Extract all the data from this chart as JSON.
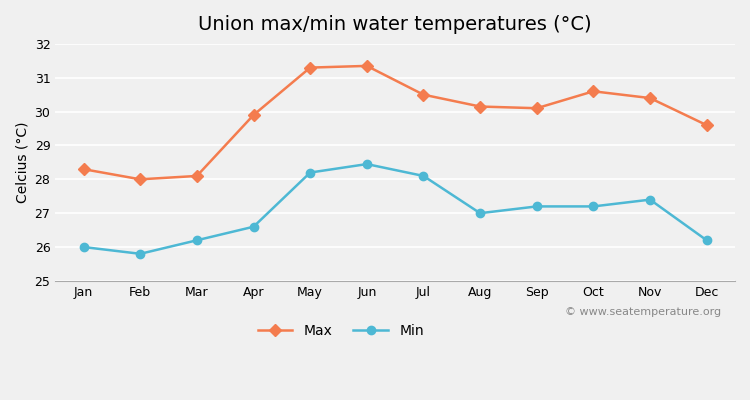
{
  "title": "Union max/min water temperatures (°C)",
  "ylabel": "Celcius (°C)",
  "months": [
    "Jan",
    "Feb",
    "Mar",
    "Apr",
    "May",
    "Jun",
    "Jul",
    "Aug",
    "Sep",
    "Oct",
    "Nov",
    "Dec"
  ],
  "max_temps": [
    28.3,
    28.0,
    28.1,
    29.9,
    31.3,
    31.35,
    30.5,
    30.15,
    30.1,
    30.6,
    30.4,
    29.6
  ],
  "min_temps": [
    26.0,
    25.8,
    26.2,
    26.6,
    28.2,
    28.45,
    28.1,
    27.0,
    27.2,
    27.2,
    27.4,
    26.2
  ],
  "max_color": "#f47c4e",
  "min_color": "#4db8d4",
  "background_color": "#f0f0f0",
  "plot_bg_color": "#f0f0f0",
  "ylim": [
    25,
    32
  ],
  "yticks": [
    25,
    26,
    27,
    28,
    29,
    30,
    31,
    32
  ],
  "grid_color": "#ffffff",
  "watermark": "© www.seatemperature.org",
  "legend_labels": [
    "Max",
    "Min"
  ],
  "title_fontsize": 14,
  "label_fontsize": 10,
  "tick_fontsize": 9,
  "watermark_fontsize": 8
}
